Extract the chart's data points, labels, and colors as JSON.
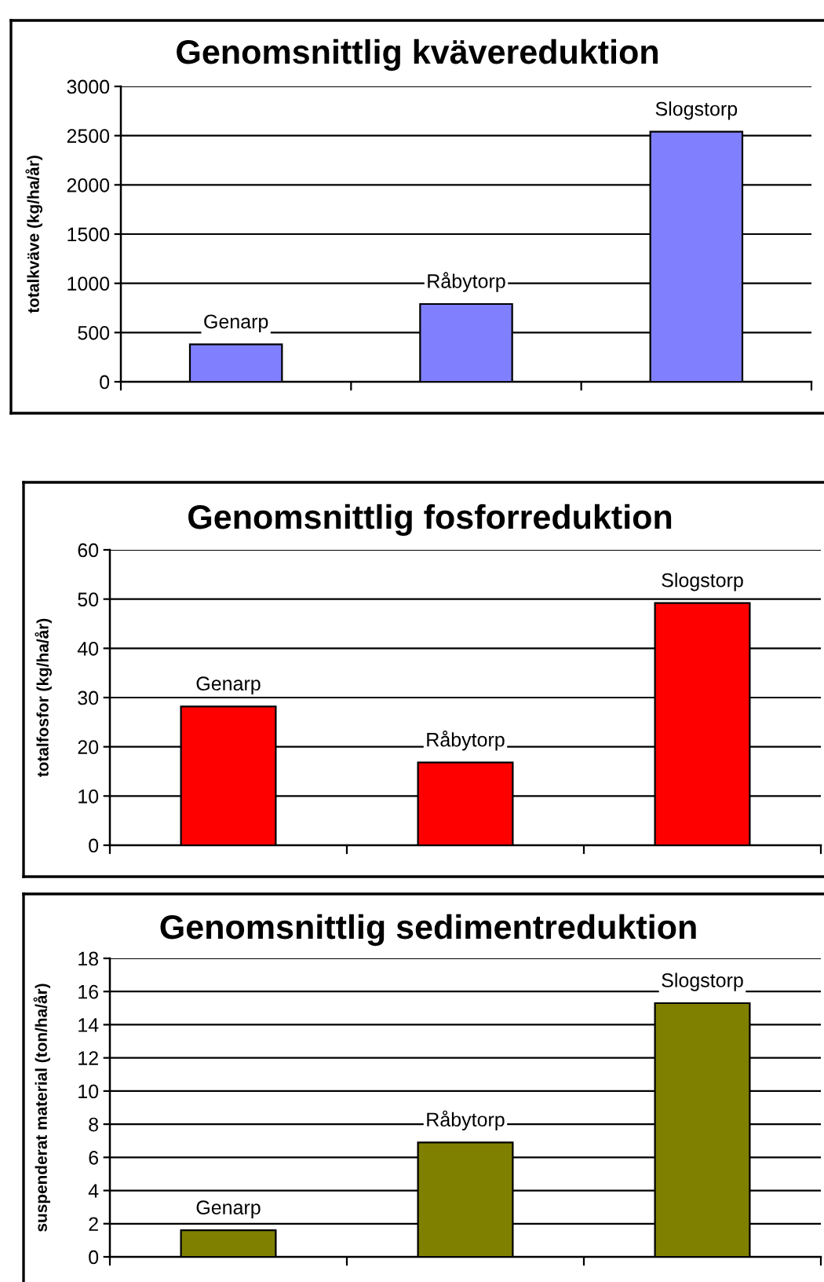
{
  "chart_data": [
    {
      "type": "bar",
      "title": "Genomsnittlig kvävereduktion",
      "ylabel": "totalkväve (kg/ha/år)",
      "categories": [
        "Genarp",
        "Råbytorp",
        "Slogstorp"
      ],
      "values": [
        380,
        790,
        2540
      ],
      "color": "#8080ff",
      "ylim": [
        0,
        3000
      ],
      "yticks": [
        0,
        500,
        1000,
        1500,
        2000,
        2500,
        3000
      ],
      "grid": "y",
      "tick_labels": "y"
    },
    {
      "type": "bar",
      "title": "Genomsnittlig fosforreduktion",
      "ylabel": "totalfosfor (kg/ha/år)",
      "categories": [
        "Genarp",
        "Råbytorp",
        "Slogstorp"
      ],
      "values": [
        28.2,
        16.8,
        49.2
      ],
      "color": "#ff0000",
      "ylim": [
        0,
        60
      ],
      "yticks": [
        0,
        10,
        20,
        30,
        40,
        50,
        60
      ],
      "grid": "y",
      "tick_labels": "y"
    },
    {
      "type": "bar",
      "title": "Genomsnittlig sedimentreduktion",
      "ylabel": "suspenderat material (ton/ha/år)",
      "categories": [
        "Genarp",
        "Råbytorp",
        "Slogstorp"
      ],
      "values": [
        1.6,
        6.9,
        15.3
      ],
      "color": "#808000",
      "ylim": [
        0,
        18
      ],
      "yticks": [
        0,
        2,
        4,
        6,
        8,
        10,
        12,
        14,
        16,
        18
      ],
      "grid": "y",
      "tick_labels": "y"
    }
  ]
}
